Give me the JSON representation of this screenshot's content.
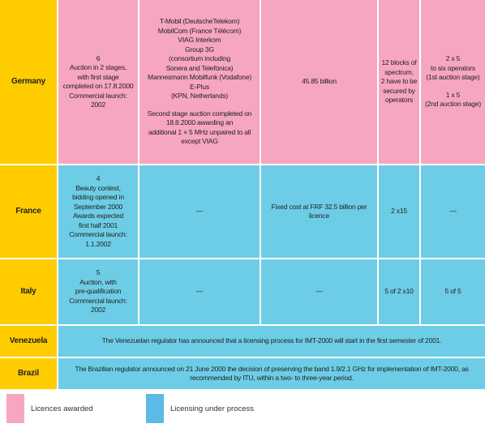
{
  "table": {
    "rows": [
      {
        "country": "Germany",
        "color": "#f7a6bf",
        "cells": [
          [
            [
              "6",
              "Auction in 2 stages,",
              "with first stage",
              "completed on 17.8.2000",
              "Commercial launch:",
              "2002"
            ]
          ],
          [
            [
              "T-Mobil (DeutscheTelekom)",
              "MobilCom (France Télécom)",
              "VIAG Interkom",
              "Group 3G",
              "(consortium including",
              "Sonera and Telefónica)",
              "Mannesmann Mobilfunk (Vodafone)",
              "E-Plus",
              "(KPN, Netherlands)"
            ],
            [
              "Second stage auction completed on",
              "18.8.2000 awarding an",
              "additional 1 × 5 MHz unpaired to all",
              "except VIAG"
            ]
          ],
          [
            [
              "45.85 billion"
            ]
          ],
          [
            [
              "12 blocks of",
              "spectrum,",
              "2 have to be",
              "secured by",
              "operators"
            ]
          ],
          [
            [
              "2 x 5",
              "to six operators",
              "(1st auction stage)"
            ],
            [
              "1 x 5",
              "(2nd auction stage)"
            ]
          ]
        ]
      },
      {
        "country": "France",
        "color": "#6dcde6",
        "cells": [
          [
            [
              "4",
              "Beauty contest,",
              "bidding opened in",
              "September 2000",
              "Awards expected",
              "first half 2001",
              "Commercial launch:",
              "1.1.2002"
            ]
          ],
          [
            [
              "—"
            ]
          ],
          [
            [
              "Fixed cost at FRF 32.5 billion per",
              "licence"
            ]
          ],
          [
            [
              "2 x15"
            ]
          ],
          [
            [
              "—"
            ]
          ]
        ]
      },
      {
        "country": "Italy",
        "color": "#6dcde6",
        "cells": [
          [
            [
              "5",
              "Auction, with",
              "pre-qualification",
              "Commercial launch:",
              "2002"
            ]
          ],
          [
            [
              "—"
            ]
          ],
          [
            [
              "—"
            ]
          ],
          [
            [
              "5 of 2 x10"
            ]
          ],
          [
            [
              "5 of 5"
            ]
          ]
        ]
      },
      {
        "country": "Venezuela",
        "color": "#6dcde6",
        "note": [
          [
            "The Venezuelan regulator has announced that a licensing process for IMT-2000 will start in the first semester of 2001."
          ]
        ]
      },
      {
        "country": "Brazil",
        "color": "#6dcde6",
        "note": [
          [
            "The Brazilian regulator announced on 21 June 2000 the decision of preserving the band 1.9/2.1 GHz for implementation of IMT-2000, as",
            "recommended by ITU, within a two- to three-year period."
          ]
        ]
      }
    ]
  },
  "legend": [
    {
      "label": "Licences awarded",
      "color": "#f7a6bf"
    },
    {
      "label": "Licensing under process",
      "color": "#5bbbe6"
    }
  ]
}
